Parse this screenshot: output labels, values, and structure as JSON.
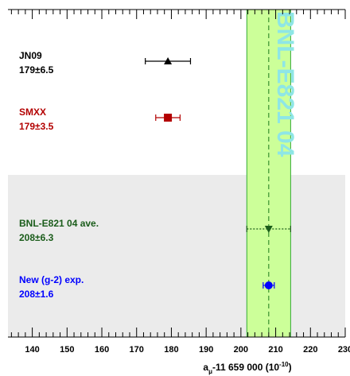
{
  "chart_data": {
    "type": "scatter",
    "title": "",
    "xlabel": "a_μ-11 659 000 (10^-10)",
    "xlabel_parts": {
      "main": "a",
      "sub": "μ",
      "rest": "-11 659 000 (10",
      "sup": "-10",
      "close": ")"
    },
    "xlim": [
      133,
      230
    ],
    "x_ticks": [
      140,
      150,
      160,
      170,
      180,
      190,
      200,
      210,
      220,
      230
    ],
    "x_tick_labels": [
      "140",
      "150",
      "160",
      "170",
      "180",
      "190",
      "200",
      "210",
      "220",
      "230"
    ],
    "band": {
      "label": "BNL-E821 04",
      "center": 208,
      "half_width": 6.3,
      "color": "#ccff99"
    },
    "entries": [
      {
        "name": "JN09",
        "value_text": "179±6.5",
        "value": 179,
        "error": 6.5,
        "color": "#000000",
        "marker": "triangle-up",
        "row": 1
      },
      {
        "name": "SMXX",
        "value_text": "179±3.5",
        "value": 179,
        "error": 3.5,
        "color": "#b30000",
        "marker": "square",
        "row": 2
      },
      {
        "name": "BNL-E821 04 ave.",
        "value_text": "208±6.3",
        "value": 208,
        "error": 6.3,
        "color": "#1a5c1a",
        "marker": "triangle-down",
        "row": 3
      },
      {
        "name": "New (g-2) exp.",
        "value_text": "208±1.6",
        "value": 208,
        "error": 1.6,
        "color": "#0000ff",
        "marker": "circle",
        "row": 4
      }
    ],
    "shaded_region": {
      "rows": [
        3,
        4
      ],
      "color": "#ebebeb"
    },
    "grid": false,
    "legend": "none"
  }
}
